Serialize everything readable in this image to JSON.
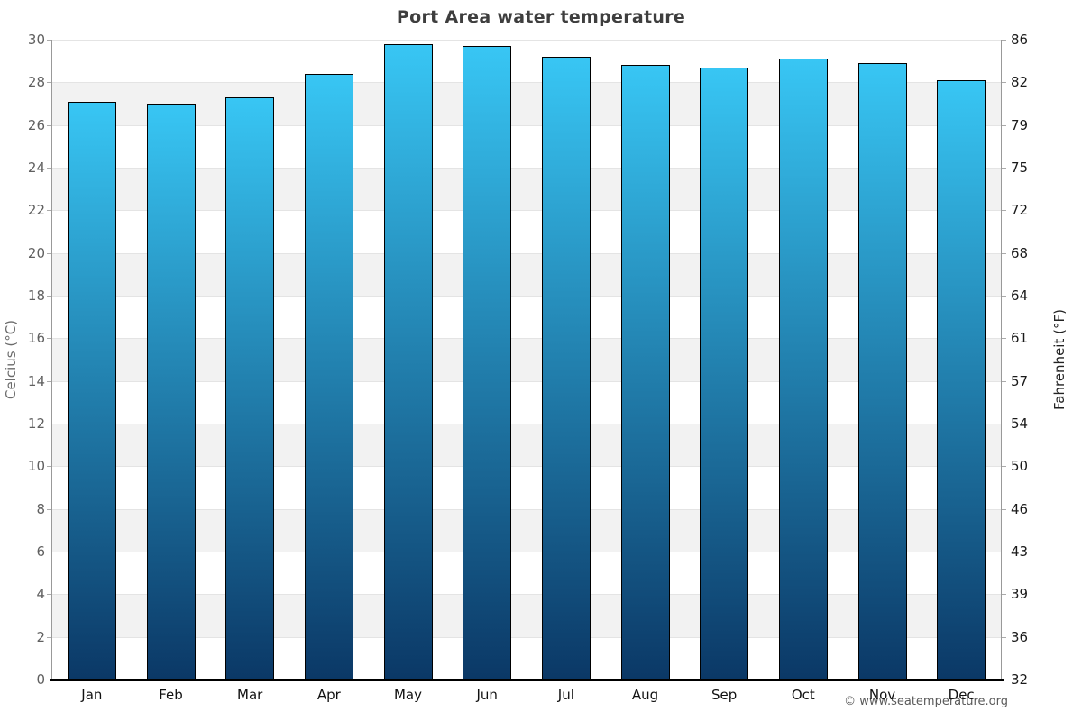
{
  "chart_data": {
    "type": "bar",
    "title": "Port Area water temperature",
    "categories": [
      "Jan",
      "Feb",
      "Mar",
      "Apr",
      "May",
      "Jun",
      "Jul",
      "Aug",
      "Sep",
      "Oct",
      "Nov",
      "Dec"
    ],
    "values": [
      27.1,
      27.0,
      27.3,
      28.4,
      29.8,
      29.7,
      29.2,
      28.8,
      28.7,
      29.1,
      28.9,
      28.1
    ],
    "value_unit": "°C",
    "ylabel_left": "Celcius (°C)",
    "ylabel_right": "Fahrenheit (°F)",
    "ylim": [
      0,
      30
    ],
    "yticks_celsius": [
      0,
      2,
      4,
      6,
      8,
      10,
      12,
      14,
      16,
      18,
      20,
      22,
      24,
      26,
      28,
      30
    ],
    "yticks_fahrenheit": [
      "32",
      "36",
      "39",
      "43",
      "46",
      "50",
      "54",
      "57",
      "61",
      "64",
      "68",
      "72",
      "75",
      "79",
      "82",
      "86"
    ],
    "grid": "alternating-horizontal-bands",
    "legend": "none",
    "colors": {
      "bar_gradient_top": "#38c6f4",
      "bar_gradient_bottom": "#0b3866",
      "bar_border": "#000000",
      "band_gray": "#f2f2f2",
      "gridline": "#e4e4e4",
      "axis_line": "#999999",
      "bottom_axis_line": "#000000",
      "title_text": "#3e3e3e",
      "left_tick_text": "#606060",
      "right_tick_text": "#1a1a1a",
      "month_text": "#111111"
    }
  },
  "footer": {
    "copyright": "© www.seatemperature.org"
  }
}
